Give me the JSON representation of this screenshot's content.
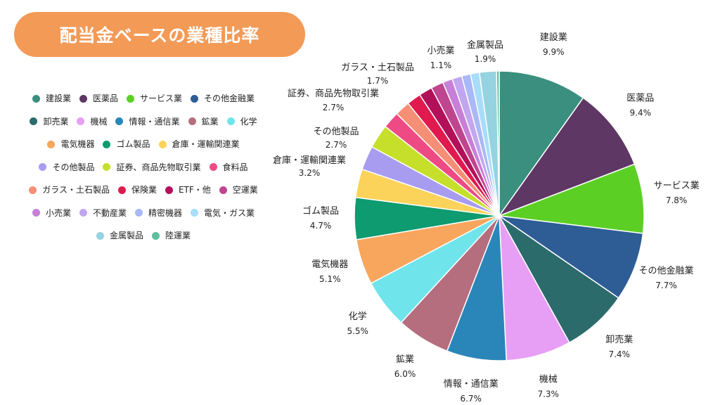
{
  "title": "配当金ベースの業種比率",
  "colors": {
    "title_bg": "#f39a57"
  },
  "chart_data": {
    "type": "pie",
    "title": "配当金ベースの業種比率",
    "legend_position": "left",
    "slices": [
      {
        "name": "建設業",
        "value": 9.9,
        "pct_label": "9.9%",
        "color": "#3a8f7e",
        "labeled": true
      },
      {
        "name": "医薬品",
        "value": 9.4,
        "pct_label": "9.4%",
        "color": "#5e3765",
        "labeled": true
      },
      {
        "name": "サービス業",
        "value": 7.8,
        "pct_label": "7.8%",
        "color": "#5ccf25",
        "labeled": true
      },
      {
        "name": "その他金融業",
        "value": 7.7,
        "pct_label": "7.7%",
        "color": "#2e5d96",
        "labeled": true
      },
      {
        "name": "卸売業",
        "value": 7.4,
        "pct_label": "7.4%",
        "color": "#2c6b6b",
        "labeled": true
      },
      {
        "name": "機械",
        "value": 7.3,
        "pct_label": "7.3%",
        "color": "#e79ef5",
        "labeled": true
      },
      {
        "name": "情報・通信業",
        "value": 6.7,
        "pct_label": "6.7%",
        "color": "#2a86b8",
        "labeled": true
      },
      {
        "name": "鉱業",
        "value": 6.0,
        "pct_label": "6.0%",
        "color": "#b56e7e",
        "labeled": true
      },
      {
        "name": "化学",
        "value": 5.5,
        "pct_label": "5.5%",
        "color": "#6fe4ea",
        "labeled": true
      },
      {
        "name": "電気機器",
        "value": 5.1,
        "pct_label": "5.1%",
        "color": "#f8a55d",
        "labeled": true
      },
      {
        "name": "ゴム製品",
        "value": 4.7,
        "pct_label": "4.7%",
        "color": "#0e9b6f",
        "labeled": true
      },
      {
        "name": "倉庫・運輸関連業",
        "value": 3.2,
        "pct_label": "3.2%",
        "color": "#fbd25a",
        "labeled": true
      },
      {
        "name": "その他製品",
        "value": 2.7,
        "pct_label": "2.7%",
        "color": "#a79cf0",
        "labeled": true
      },
      {
        "name": "証券、商品先物取引業",
        "value": 2.7,
        "pct_label": "2.7%",
        "color": "#c6df2a",
        "labeled": true
      },
      {
        "name": "食料品",
        "value": 1.9,
        "pct_label": "",
        "color": "#ee4b84",
        "labeled": false
      },
      {
        "name": "ガラス・土石製品",
        "value": 1.7,
        "pct_label": "1.7%",
        "color": "#f68f75",
        "labeled": true
      },
      {
        "name": "保険業",
        "value": 1.6,
        "pct_label": "",
        "color": "#e01a4f",
        "labeled": false
      },
      {
        "name": "ETF・他",
        "value": 1.5,
        "pct_label": "",
        "color": "#b3105a",
        "labeled": false
      },
      {
        "name": "空運業",
        "value": 1.4,
        "pct_label": "",
        "color": "#c0458f",
        "labeled": false
      },
      {
        "name": "小売業",
        "value": 1.1,
        "pct_label": "1.1%",
        "color": "#c77fd8",
        "labeled": true
      },
      {
        "name": "不動産業",
        "value": 1.1,
        "pct_label": "",
        "color": "#c2a6f0",
        "labeled": false
      },
      {
        "name": "精密機器",
        "value": 1.0,
        "pct_label": "",
        "color": "#a9b8f7",
        "labeled": false
      },
      {
        "name": "電気・ガス業",
        "value": 1.0,
        "pct_label": "",
        "color": "#a7ddfa",
        "labeled": false
      },
      {
        "name": "金属製品",
        "value": 1.9,
        "pct_label": "1.9%",
        "color": "#94d3df",
        "labeled": true
      },
      {
        "name": "陸運業",
        "value": 0.3,
        "pct_label": "",
        "color": "#5fbf9f",
        "labeled": false
      }
    ]
  }
}
